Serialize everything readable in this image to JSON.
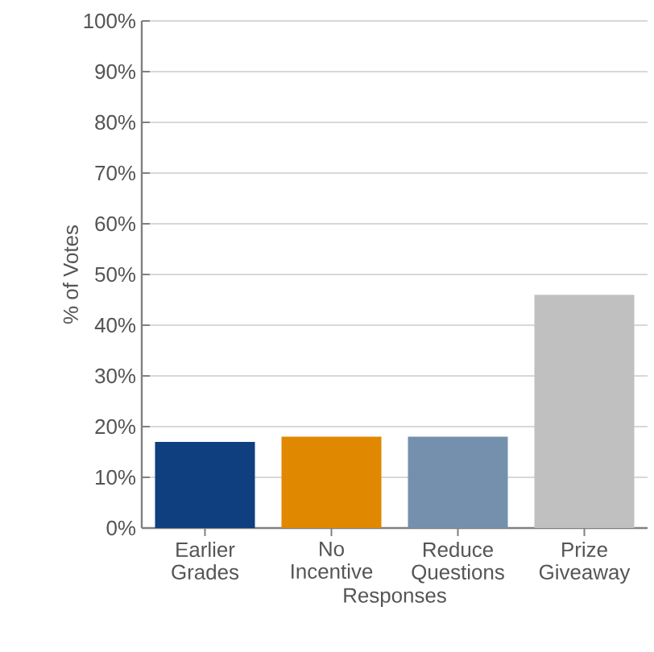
{
  "chart_data": {
    "type": "bar",
    "xlabel": "Responses",
    "ylabel": "% of Votes",
    "categories": [
      "Earlier Grades",
      "No Incentive",
      "Reduce Questions",
      "Prize Giveaway"
    ],
    "values": [
      17,
      18,
      18,
      46
    ],
    "colors": [
      "#0f3f7f",
      "#e08800",
      "#7590ad",
      "#c0c0c0"
    ],
    "ylim": [
      0,
      100
    ],
    "yticks": [
      {
        "value": 0,
        "label": "0%"
      },
      {
        "value": 10,
        "label": "10%"
      },
      {
        "value": 20,
        "label": "20%"
      },
      {
        "value": 30,
        "label": "30%"
      },
      {
        "value": 40,
        "label": "40%"
      },
      {
        "value": 50,
        "label": "50%"
      },
      {
        "value": 60,
        "label": "60%"
      },
      {
        "value": 70,
        "label": "70%"
      },
      {
        "value": 80,
        "label": "80%"
      },
      {
        "value": 90,
        "label": "90%"
      },
      {
        "value": 100,
        "label": "100%"
      }
    ],
    "grid": "y"
  }
}
